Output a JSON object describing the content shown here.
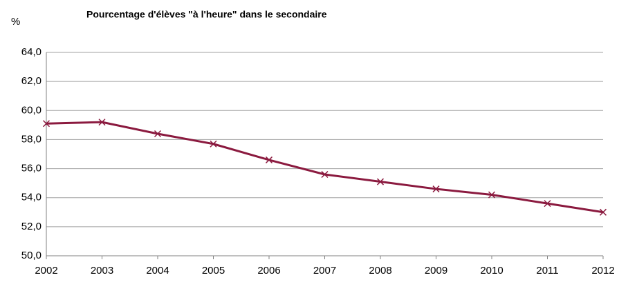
{
  "chart_data": {
    "type": "line",
    "title": "Pourcentage d'élèves \"à l'heure\" dans le secondaire",
    "y_label": "%",
    "categories": [
      "2002",
      "2003",
      "2004",
      "2005",
      "2006",
      "2007",
      "2008",
      "2009",
      "2010",
      "2011",
      "2012"
    ],
    "values": [
      59.1,
      59.2,
      58.4,
      57.7,
      56.6,
      55.6,
      55.1,
      54.6,
      54.2,
      53.6,
      53.0
    ],
    "color": "#8b1a3f",
    "ylim": [
      50,
      64
    ],
    "yticks": [
      {
        "value": 50,
        "label": "50,0"
      },
      {
        "value": 52,
        "label": "52,0"
      },
      {
        "value": 54,
        "label": "54,0"
      },
      {
        "value": 56,
        "label": "56,0"
      },
      {
        "value": 58,
        "label": "58,0"
      },
      {
        "value": 60,
        "label": "60,0"
      },
      {
        "value": 62,
        "label": "62,0"
      },
      {
        "value": 64,
        "label": "64,0"
      }
    ],
    "grid": true
  }
}
